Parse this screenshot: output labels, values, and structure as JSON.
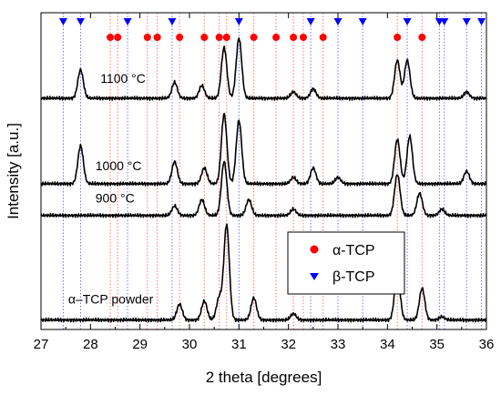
{
  "chart_data": {
    "type": "line",
    "xlabel": "2 theta [degrees]",
    "ylabel": "Intensity [a.u.]",
    "xlim": [
      27,
      36
    ],
    "x_ticks": [
      "27",
      "28",
      "29",
      "30",
      "31",
      "32",
      "33",
      "34",
      "35",
      "36"
    ],
    "grid": false,
    "legend_position": "center-right",
    "legend": [
      {
        "label": "α-TCP",
        "marker": "circle",
        "color": "#ff0000"
      },
      {
        "label": "β-TCP",
        "marker": "triangle-down",
        "color": "#0000ff"
      }
    ],
    "reference_lines": {
      "alpha_TCP": {
        "color": "#ff0000",
        "positions": [
          28.4,
          28.55,
          29.15,
          29.35,
          29.8,
          30.3,
          30.6,
          30.75,
          31.3,
          31.75,
          32.1,
          32.3,
          32.7,
          34.2,
          34.7
        ]
      },
      "beta_TCP": {
        "color": "#0000ff",
        "positions": [
          27.45,
          27.8,
          28.75,
          29.65,
          31.0,
          32.45,
          33.0,
          33.5,
          34.4,
          35.05,
          35.15,
          35.6,
          35.9
        ]
      }
    },
    "series": [
      {
        "name": "α–TCP powder",
        "baseline": 0.03,
        "peaks": [
          [
            29.8,
            0.05
          ],
          [
            30.3,
            0.06
          ],
          [
            30.6,
            0.07
          ],
          [
            30.75,
            0.3
          ],
          [
            31.3,
            0.07
          ],
          [
            32.1,
            0.02
          ],
          [
            34.2,
            0.15
          ],
          [
            34.7,
            0.1
          ],
          [
            35.1,
            0.01
          ]
        ]
      },
      {
        "name": "900 °C",
        "baseline": 0.36,
        "peaks": [
          [
            29.7,
            0.03
          ],
          [
            30.25,
            0.05
          ],
          [
            30.7,
            0.17
          ],
          [
            31.2,
            0.05
          ],
          [
            32.1,
            0.02
          ],
          [
            34.2,
            0.13
          ],
          [
            34.65,
            0.07
          ],
          [
            35.1,
            0.02
          ]
        ]
      },
      {
        "name": "1000 °C",
        "baseline": 0.46,
        "peaks": [
          [
            27.8,
            0.12
          ],
          [
            29.7,
            0.07
          ],
          [
            30.3,
            0.05
          ],
          [
            30.7,
            0.22
          ],
          [
            31.0,
            0.2
          ],
          [
            32.1,
            0.02
          ],
          [
            32.5,
            0.05
          ],
          [
            33.0,
            0.02
          ],
          [
            34.2,
            0.14
          ],
          [
            34.45,
            0.15
          ],
          [
            35.6,
            0.04
          ]
        ]
      },
      {
        "name": "1100 °C",
        "baseline": 0.73,
        "peaks": [
          [
            27.8,
            0.09
          ],
          [
            29.7,
            0.05
          ],
          [
            30.25,
            0.04
          ],
          [
            30.7,
            0.16
          ],
          [
            31.0,
            0.19
          ],
          [
            32.1,
            0.02
          ],
          [
            32.5,
            0.03
          ],
          [
            34.2,
            0.12
          ],
          [
            34.4,
            0.12
          ],
          [
            35.6,
            0.02
          ]
        ]
      }
    ]
  }
}
